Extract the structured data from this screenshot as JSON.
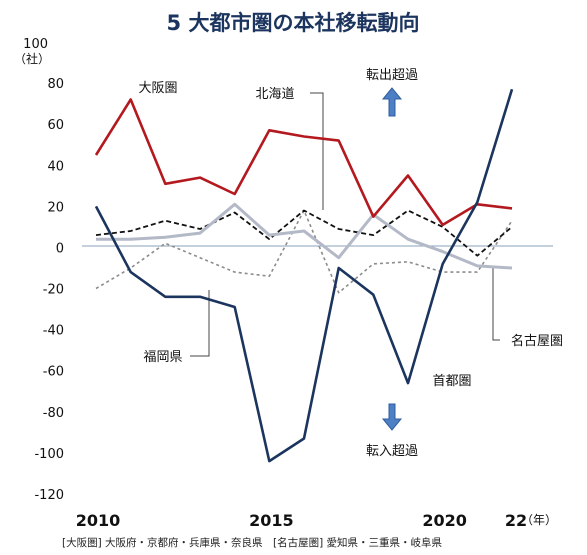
{
  "chart_data": {
    "type": "line",
    "title": "5 大都市圏の本社移転動向",
    "y_unit_top": "100",
    "y_unit_label": "（社）",
    "x_ticks": [
      "2010",
      "2015",
      "2020",
      "22"
    ],
    "x_unit": "（年）",
    "ylim": [
      -120,
      100
    ],
    "y_ticks": [
      "80",
      "60",
      "40",
      "20",
      "0",
      "-20",
      "-40",
      "-60",
      "-80",
      "-100",
      "-120"
    ],
    "x": [
      2010,
      2011,
      2012,
      2013,
      2014,
      2015,
      2016,
      2017,
      2018,
      2019,
      2020,
      2021,
      2022
    ],
    "series": [
      {
        "name": "大阪圏",
        "color": "#b3191f",
        "dash": "solid",
        "values": [
          45,
          72,
          31,
          34,
          26,
          57,
          54,
          52,
          15,
          35,
          11,
          21,
          19
        ]
      },
      {
        "name": "北海道",
        "color": "#111111",
        "dash": "dashed",
        "values": [
          6,
          8,
          13,
          9,
          17,
          4,
          18,
          9,
          6,
          18,
          10,
          -4,
          10
        ]
      },
      {
        "name": "名古屋圏",
        "color": "#b3b9c7",
        "dash": "solid",
        "values": [
          4,
          4,
          5,
          7,
          21,
          6,
          8,
          -5,
          16,
          4,
          -2,
          -9,
          -10
        ]
      },
      {
        "name": "福岡県",
        "color": "#8c8c8c",
        "dash": "dotted",
        "values": [
          -20,
          -10,
          2,
          -5,
          -12,
          -14,
          18,
          -22,
          -8,
          -7,
          -12,
          -12,
          13
        ]
      },
      {
        "name": "首都圏",
        "color": "#1c355e",
        "dash": "solid",
        "values": [
          20,
          -12,
          -24,
          -24,
          -29,
          -104,
          -93,
          -10,
          -23,
          -66,
          -8,
          22,
          77
        ]
      }
    ],
    "annotations": {
      "transfer_out": "転出超過",
      "transfer_in": "転入超過",
      "footnote": "[大阪圏] 大阪府・京都府・兵庫県・奈良県　[名古屋圏] 愛知県・三重県・岐阜県"
    },
    "arrow_color": "#4d7fc4"
  }
}
